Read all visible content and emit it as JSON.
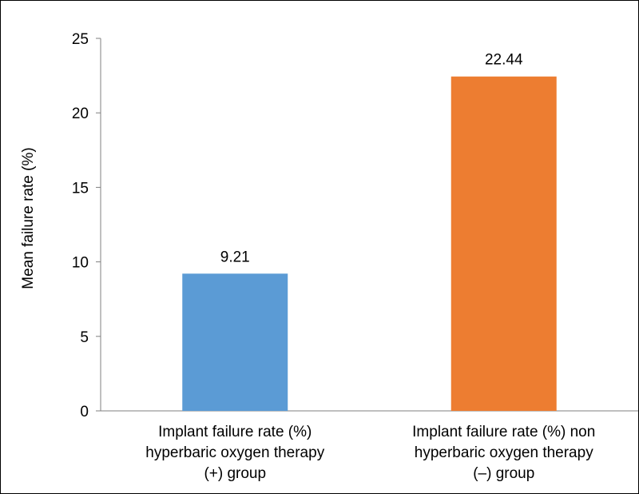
{
  "chart_data": {
    "type": "bar",
    "title": "",
    "ylabel": "Mean failure rate (%)",
    "xlabel": "",
    "ylim": [
      0,
      25
    ],
    "yticks": [
      0,
      5,
      10,
      15,
      20,
      25
    ],
    "grid": false,
    "legend": "none",
    "categories": [
      [
        "Implant failure rate (%)",
        "hyperbaric oxygen therapy",
        "(+) group"
      ],
      [
        "Implant failure rate (%) non",
        "hyperbaric oxygen therapy",
        "(–) group"
      ]
    ],
    "values": [
      9.21,
      22.44
    ],
    "data_labels": [
      "9.21",
      "22.44"
    ],
    "colors": [
      "#5b9bd5",
      "#ed7d31"
    ]
  }
}
